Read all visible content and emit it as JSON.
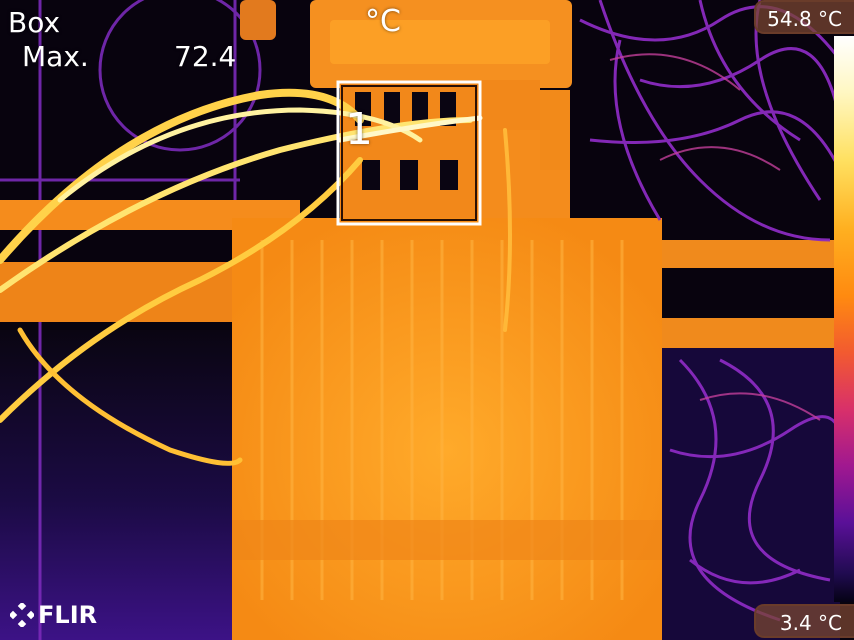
{
  "overlay": {
    "measure_type": "Box",
    "measure_stat": "Max.",
    "measure_value": "72.4",
    "unit": "°C",
    "box_id": "1"
  },
  "scale": {
    "max_label": "54.8 °C",
    "min_label": "3.4 °C"
  },
  "brand": {
    "logo_text": "FLIR"
  },
  "palette": {
    "background": "#0a0410",
    "hot": "#ff9a18",
    "hottest": "#fff6b0",
    "cool": "#7a22b8"
  }
}
